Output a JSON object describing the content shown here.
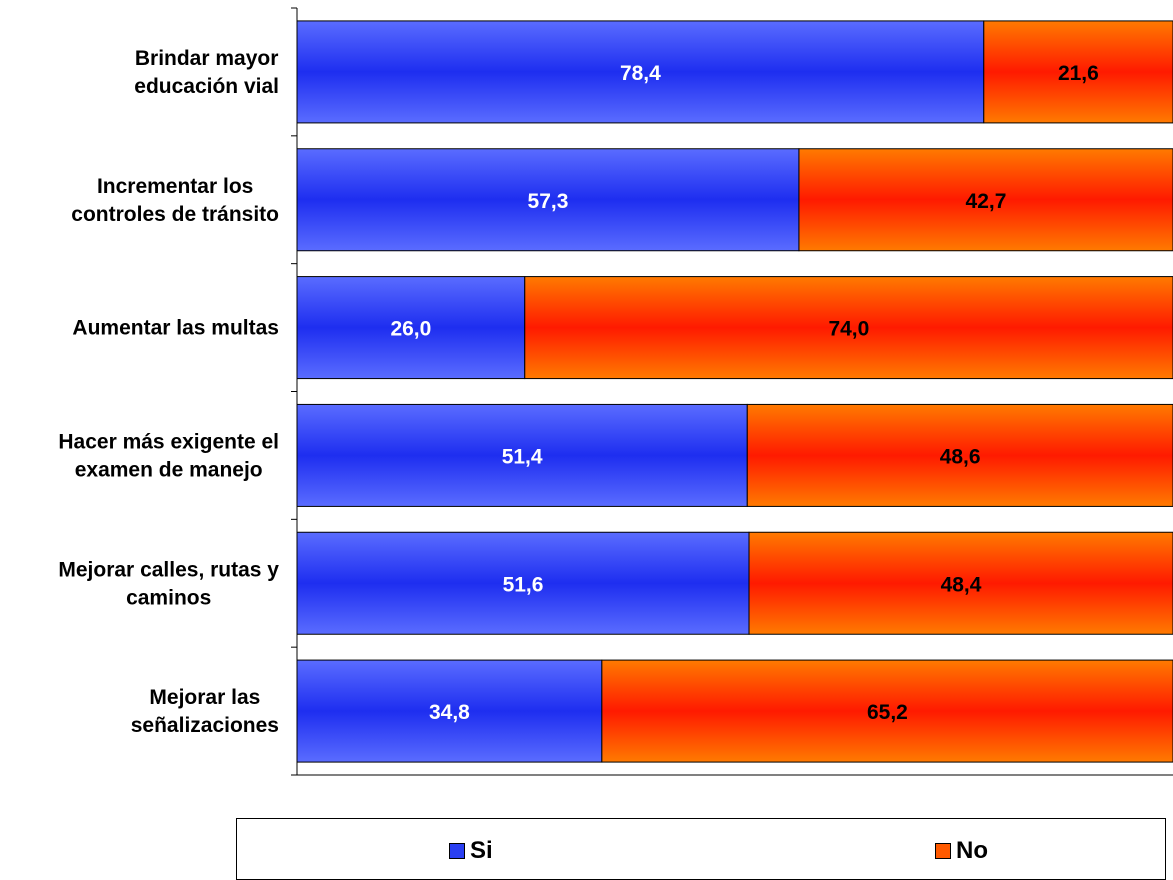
{
  "colors": {
    "si": "#2a3ff2",
    "no": "#ff5a00"
  },
  "chart_data": {
    "type": "bar",
    "orientation": "horizontal",
    "stacked": true,
    "categories": [
      [
        "Brindar mayor",
        "educación vial"
      ],
      [
        "Incrementar los",
        "controles de tránsito"
      ],
      [
        "Aumentar las multas"
      ],
      [
        "Hacer más exigente el",
        "examen de manejo"
      ],
      [
        "Mejorar calles, rutas y",
        "caminos"
      ],
      [
        "Mejorar las",
        "señalizaciones"
      ]
    ],
    "series": [
      {
        "name": "Si",
        "values": [
          78.4,
          57.3,
          26.0,
          51.4,
          51.6,
          34.8
        ],
        "labels": [
          "78,4",
          "57,3",
          "26,0",
          "51,4",
          "51,6",
          "34,8"
        ]
      },
      {
        "name": "No",
        "values": [
          21.6,
          42.7,
          74.0,
          48.6,
          48.4,
          65.2
        ],
        "labels": [
          "21,6",
          "42,7",
          "74,0",
          "48,6",
          "48,4",
          "65,2"
        ]
      }
    ],
    "xlim": [
      0,
      100
    ],
    "grid": false,
    "legend_position": "bottom"
  },
  "legend": {
    "si_label": "Si",
    "no_label": "No"
  }
}
